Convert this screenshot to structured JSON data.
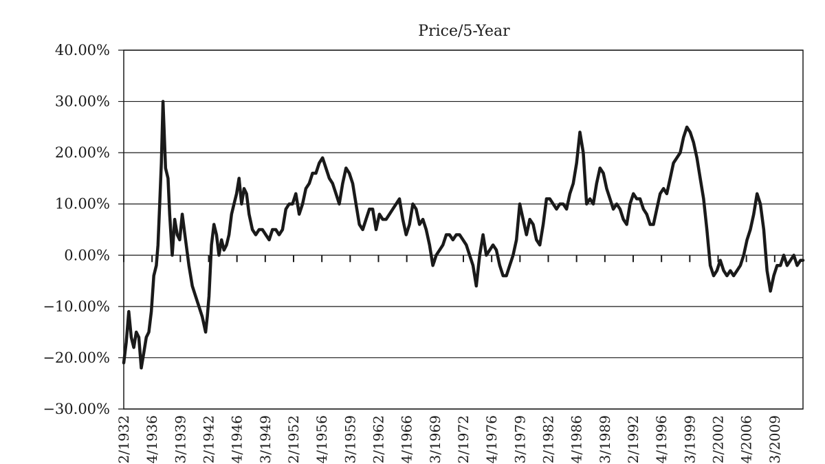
{
  "chart_data": {
    "type": "line",
    "title": "Price/5-Year",
    "xlabel": "",
    "ylabel": "",
    "ylim": [
      -0.3,
      0.4
    ],
    "y_ticks": [
      "40.00%",
      "30.00%",
      "20.00%",
      "10.00%",
      "0.00%",
      "−10.00%",
      "−20.00%",
      "−30.00%"
    ],
    "y_tick_values": [
      0.4,
      0.3,
      0.2,
      0.1,
      0.0,
      -0.1,
      -0.2,
      -0.3
    ],
    "x_tick_labels": [
      "2/1932",
      "4/1936",
      "3/1939",
      "2/1942",
      "4/1946",
      "3/1949",
      "2/1952",
      "4/1956",
      "3/1959",
      "2/1962",
      "4/1966",
      "3/1969",
      "2/1972",
      "4/1976",
      "3/1979",
      "2/1982",
      "4/1986",
      "3/1989",
      "2/1992",
      "4/1996",
      "3/1999",
      "2/2002",
      "4/2006",
      "3/2009"
    ],
    "grid": "horizontal",
    "legend": "none",
    "line_color": "#1a1a1a",
    "series": [
      {
        "x": [
          1932.0,
          1932.3,
          1932.6,
          1932.9,
          1933.2,
          1933.5,
          1933.8,
          1934.1,
          1934.4,
          1934.7,
          1935.0,
          1935.3,
          1935.6,
          1935.9,
          1936.1,
          1936.3,
          1936.5,
          1936.7,
          1937.0,
          1937.3,
          1937.5,
          1937.8,
          1938.1,
          1938.4,
          1938.7,
          1939.0,
          1939.4,
          1939.8,
          1940.2,
          1940.6,
          1941.0,
          1941.4,
          1941.8,
          1942.0,
          1942.2,
          1942.5,
          1942.8,
          1943.1,
          1943.4,
          1943.7,
          1944.0,
          1944.3,
          1944.6,
          1944.9,
          1945.2,
          1945.5,
          1945.8,
          1946.1,
          1946.4,
          1946.7,
          1947.0,
          1947.4,
          1947.8,
          1948.2,
          1948.6,
          1949.0,
          1949.4,
          1949.8,
          1950.2,
          1950.6,
          1951.0,
          1951.4,
          1951.8,
          1952.2,
          1952.6,
          1953.0,
          1953.4,
          1953.8,
          1954.2,
          1954.6,
          1955.0,
          1955.4,
          1955.8,
          1956.2,
          1956.6,
          1957.0,
          1957.4,
          1957.8,
          1958.2,
          1958.6,
          1959.0,
          1959.4,
          1959.8,
          1960.2,
          1960.6,
          1961.0,
          1961.4,
          1961.8,
          1962.2,
          1962.6,
          1963.0,
          1963.4,
          1963.8,
          1964.2,
          1964.6,
          1965.0,
          1965.4,
          1965.8,
          1966.2,
          1966.6,
          1967.0,
          1967.4,
          1967.8,
          1968.2,
          1968.6,
          1969.0,
          1969.4,
          1969.8,
          1970.2,
          1970.6,
          1971.0,
          1971.4,
          1971.8,
          1972.2,
          1972.6,
          1973.0,
          1973.4,
          1973.8,
          1974.2,
          1974.6,
          1975.0,
          1975.4,
          1975.8,
          1976.2,
          1976.6,
          1977.0,
          1977.4,
          1977.8,
          1978.2,
          1978.6,
          1979.0,
          1979.4,
          1979.8,
          1980.2,
          1980.6,
          1981.0,
          1981.4,
          1981.8,
          1982.2,
          1982.6,
          1983.0,
          1983.4,
          1983.8,
          1984.2,
          1984.6,
          1985.0,
          1985.4,
          1985.8,
          1986.2,
          1986.6,
          1987.0,
          1987.4,
          1987.8,
          1988.2,
          1988.6,
          1989.0,
          1989.4,
          1989.8,
          1990.2,
          1990.6,
          1991.0,
          1991.4,
          1991.8,
          1992.2,
          1992.6,
          1993.0,
          1993.4,
          1993.8,
          1994.2,
          1994.6,
          1995.0,
          1995.4,
          1995.8,
          1996.2,
          1996.6,
          1997.0,
          1997.4,
          1997.8,
          1998.2,
          1998.6,
          1999.0,
          1999.4,
          1999.8,
          2000.2,
          2000.6,
          2001.0,
          2001.4,
          2001.8,
          2002.2,
          2002.6,
          2003.0,
          2003.4,
          2003.8,
          2004.2,
          2004.6,
          2005.0,
          2005.4,
          2005.8,
          2006.2,
          2006.6,
          2007.0,
          2007.4,
          2007.8,
          2008.2,
          2008.6,
          2009.0,
          2009.4,
          2009.8,
          2010.2,
          2010.6,
          2011.0,
          2011.4,
          2011.8,
          2012.2,
          2012.6,
          2013.0,
          2013.3
        ],
        "y": [
          -0.21,
          -0.17,
          -0.11,
          -0.16,
          -0.18,
          -0.15,
          -0.16,
          -0.22,
          -0.19,
          -0.16,
          -0.15,
          -0.11,
          -0.04,
          -0.02,
          0.02,
          0.1,
          0.18,
          0.3,
          0.17,
          0.15,
          0.08,
          0.0,
          0.07,
          0.04,
          0.03,
          0.08,
          0.03,
          -0.02,
          -0.06,
          -0.08,
          -0.1,
          -0.12,
          -0.15,
          -0.12,
          -0.08,
          0.02,
          0.06,
          0.04,
          0.0,
          0.03,
          0.01,
          0.02,
          0.04,
          0.08,
          0.1,
          0.12,
          0.15,
          0.1,
          0.13,
          0.12,
          0.08,
          0.05,
          0.04,
          0.05,
          0.05,
          0.04,
          0.03,
          0.05,
          0.05,
          0.04,
          0.05,
          0.09,
          0.1,
          0.1,
          0.12,
          0.08,
          0.1,
          0.13,
          0.14,
          0.16,
          0.16,
          0.18,
          0.19,
          0.17,
          0.15,
          0.14,
          0.12,
          0.1,
          0.14,
          0.17,
          0.16,
          0.14,
          0.1,
          0.06,
          0.05,
          0.07,
          0.09,
          0.09,
          0.05,
          0.08,
          0.07,
          0.07,
          0.08,
          0.09,
          0.1,
          0.11,
          0.07,
          0.04,
          0.06,
          0.1,
          0.09,
          0.06,
          0.07,
          0.05,
          0.02,
          -0.02,
          0.0,
          0.01,
          0.02,
          0.04,
          0.04,
          0.03,
          0.04,
          0.04,
          0.03,
          0.02,
          0.0,
          -0.02,
          -0.06,
          0.0,
          0.04,
          0.0,
          0.01,
          0.02,
          0.01,
          -0.02,
          -0.04,
          -0.04,
          -0.02,
          0.0,
          0.03,
          0.1,
          0.07,
          0.04,
          0.07,
          0.06,
          0.03,
          0.02,
          0.06,
          0.11,
          0.11,
          0.1,
          0.09,
          0.1,
          0.1,
          0.09,
          0.12,
          0.14,
          0.18,
          0.24,
          0.2,
          0.1,
          0.11,
          0.1,
          0.14,
          0.17,
          0.16,
          0.13,
          0.11,
          0.09,
          0.1,
          0.09,
          0.07,
          0.06,
          0.1,
          0.12,
          0.11,
          0.11,
          0.09,
          0.08,
          0.06,
          0.06,
          0.09,
          0.12,
          0.13,
          0.12,
          0.15,
          0.18,
          0.19,
          0.2,
          0.23,
          0.25,
          0.24,
          0.22,
          0.19,
          0.15,
          0.11,
          0.05,
          -0.02,
          -0.04,
          -0.03,
          -0.01,
          -0.03,
          -0.04,
          -0.03,
          -0.04,
          -0.03,
          -0.02,
          0.0,
          0.03,
          0.05,
          0.08,
          0.12,
          0.1,
          0.05,
          -0.03,
          -0.07,
          -0.04,
          -0.02,
          -0.02,
          0.0,
          -0.02,
          -0.01,
          0.0,
          -0.02,
          -0.01,
          -0.01
        ]
      }
    ]
  }
}
